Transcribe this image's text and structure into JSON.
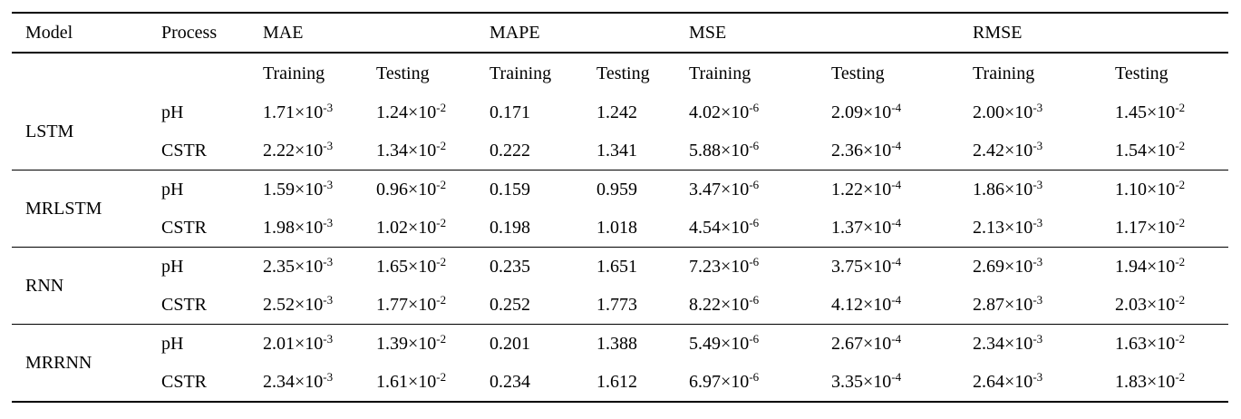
{
  "page": {
    "background_color": "#ffffff",
    "text_color": "#000000"
  },
  "table": {
    "columns": {
      "model_label": "Model",
      "process_label": "Process",
      "metrics": [
        "MAE",
        "MAPE",
        "MSE",
        "RMSE"
      ],
      "sub_columns": [
        "Training",
        "Testing"
      ]
    },
    "model_groups": [
      {
        "model": "LSTM",
        "rows": [
          {
            "process": "pH",
            "values": [
              "1.71×10^-3",
              "1.24×10^-2",
              "0.171",
              "1.242",
              "4.02×10^-6",
              "2.09×10^-4",
              "2.00×10^-3",
              "1.45×10^-2"
            ]
          },
          {
            "process": "CSTR",
            "values": [
              "2.22×10^-3",
              "1.34×10^-2",
              "0.222",
              "1.341",
              "5.88×10^-6",
              "2.36×10^-4",
              "2.42×10^-3",
              "1.54×10^-2"
            ]
          }
        ]
      },
      {
        "model": "MRLSTM",
        "rows": [
          {
            "process": "pH",
            "values": [
              "1.59×10^-3",
              "0.96×10^-2",
              "0.159",
              "0.959",
              "3.47×10^-6",
              "1.22×10^-4",
              "1.86×10^-3",
              "1.10×10^-2"
            ]
          },
          {
            "process": "CSTR",
            "values": [
              "1.98×10^-3",
              "1.02×10^-2",
              "0.198",
              "1.018",
              "4.54×10^-6",
              "1.37×10^-4",
              "2.13×10^-3",
              "1.17×10^-2"
            ]
          }
        ]
      },
      {
        "model": "RNN",
        "rows": [
          {
            "process": "pH",
            "values": [
              "2.35×10^-3",
              "1.65×10^-2",
              "0.235",
              "1.651",
              "7.23×10^-6",
              "3.75×10^-4",
              "2.69×10^-3",
              "1.94×10^-2"
            ]
          },
          {
            "process": "CSTR",
            "values": [
              "2.52×10^-3",
              "1.77×10^-2",
              "0.252",
              "1.773",
              "8.22×10^-6",
              "4.12×10^-4",
              "2.87×10^-3",
              "2.03×10^-2"
            ]
          }
        ]
      },
      {
        "model": "MRRNN",
        "rows": [
          {
            "process": "pH",
            "values": [
              "2.01×10^-3",
              "1.39×10^-2",
              "0.201",
              "1.388",
              "5.49×10^-6",
              "2.67×10^-4",
              "2.34×10^-3",
              "1.63×10^-2"
            ]
          },
          {
            "process": "CSTR",
            "values": [
              "2.34×10^-3",
              "1.61×10^-2",
              "0.234",
              "1.612",
              "6.97×10^-6",
              "3.35×10^-4",
              "2.64×10^-3",
              "1.83×10^-2"
            ]
          }
        ]
      }
    ]
  }
}
